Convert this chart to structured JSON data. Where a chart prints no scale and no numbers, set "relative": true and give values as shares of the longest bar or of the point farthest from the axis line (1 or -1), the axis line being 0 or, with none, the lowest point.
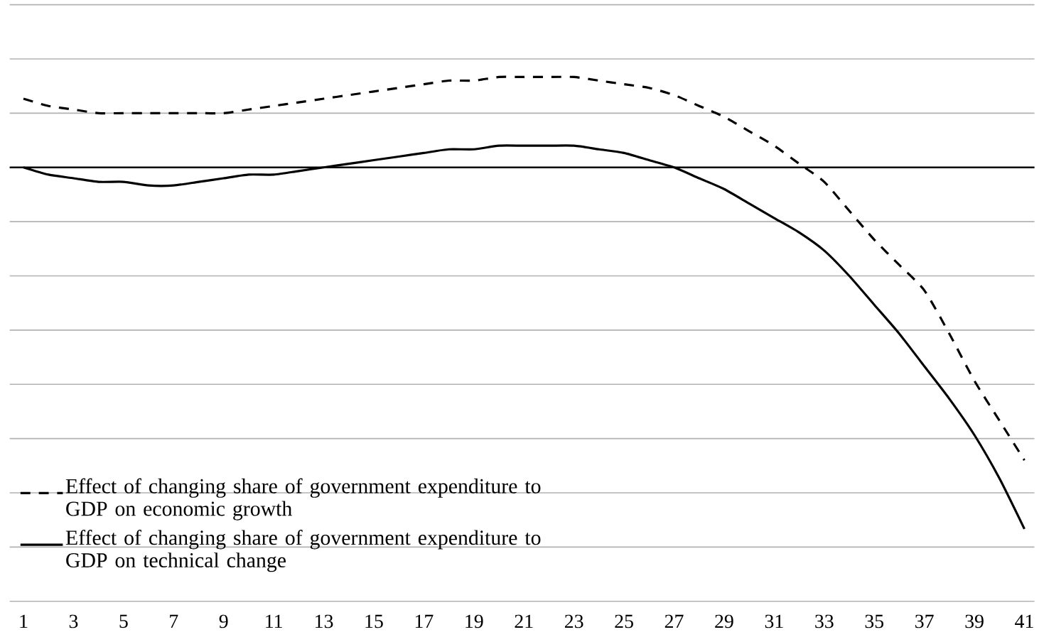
{
  "chart_data": {
    "type": "line",
    "relative": true,
    "grid": "y",
    "legend": "bottom left",
    "marker": "none",
    "categories": [
      "1",
      null,
      "3",
      null,
      "5",
      null,
      "7",
      null,
      "9",
      null,
      "11",
      null,
      "13",
      null,
      "15",
      null,
      "17",
      null,
      "19",
      null,
      "21",
      null,
      "23",
      null,
      "25",
      null,
      "27",
      null,
      "29",
      null,
      "31",
      null,
      "33",
      null,
      "35",
      null,
      "37",
      null,
      "39",
      null,
      "41"
    ],
    "series": [
      {
        "name": "Effect of changing share of government expenditure to GDP on economic growth",
        "color": "#000000",
        "line_style": "dashed",
        "values": [
          0.19,
          0.17,
          0.16,
          0.15,
          0.15,
          0.15,
          0.15,
          0.15,
          0.15,
          0.16,
          0.17,
          0.18,
          0.19,
          0.2,
          0.21,
          0.22,
          0.23,
          0.24,
          0.24,
          0.25,
          0.25,
          0.25,
          0.25,
          0.24,
          0.23,
          0.22,
          0.2,
          0.17,
          0.14,
          0.1,
          0.06,
          0.01,
          -0.04,
          -0.12,
          -0.2,
          -0.27,
          -0.34,
          -0.46,
          -0.59,
          -0.7,
          -0.81
        ]
      },
      {
        "name": "Effect of changing share of government expenditure to GDP on technical change",
        "color": "#000000",
        "line_style": "solid",
        "values": [
          0,
          -0.02,
          -0.03,
          -0.04,
          -0.04,
          -0.05,
          -0.05,
          -0.04,
          -0.03,
          -0.02,
          -0.02,
          -0.01,
          0,
          0.01,
          0.02,
          0.03,
          0.04,
          0.05,
          0.05,
          0.06,
          0.06,
          0.06,
          0.06,
          0.05,
          0.04,
          0.02,
          0,
          -0.03,
          -0.06,
          -0.1,
          -0.14,
          -0.18,
          -0.23,
          -0.3,
          -0.38,
          -0.46,
          -0.55,
          -0.64,
          -0.74,
          -0.86,
          -1
        ]
      }
    ]
  }
}
